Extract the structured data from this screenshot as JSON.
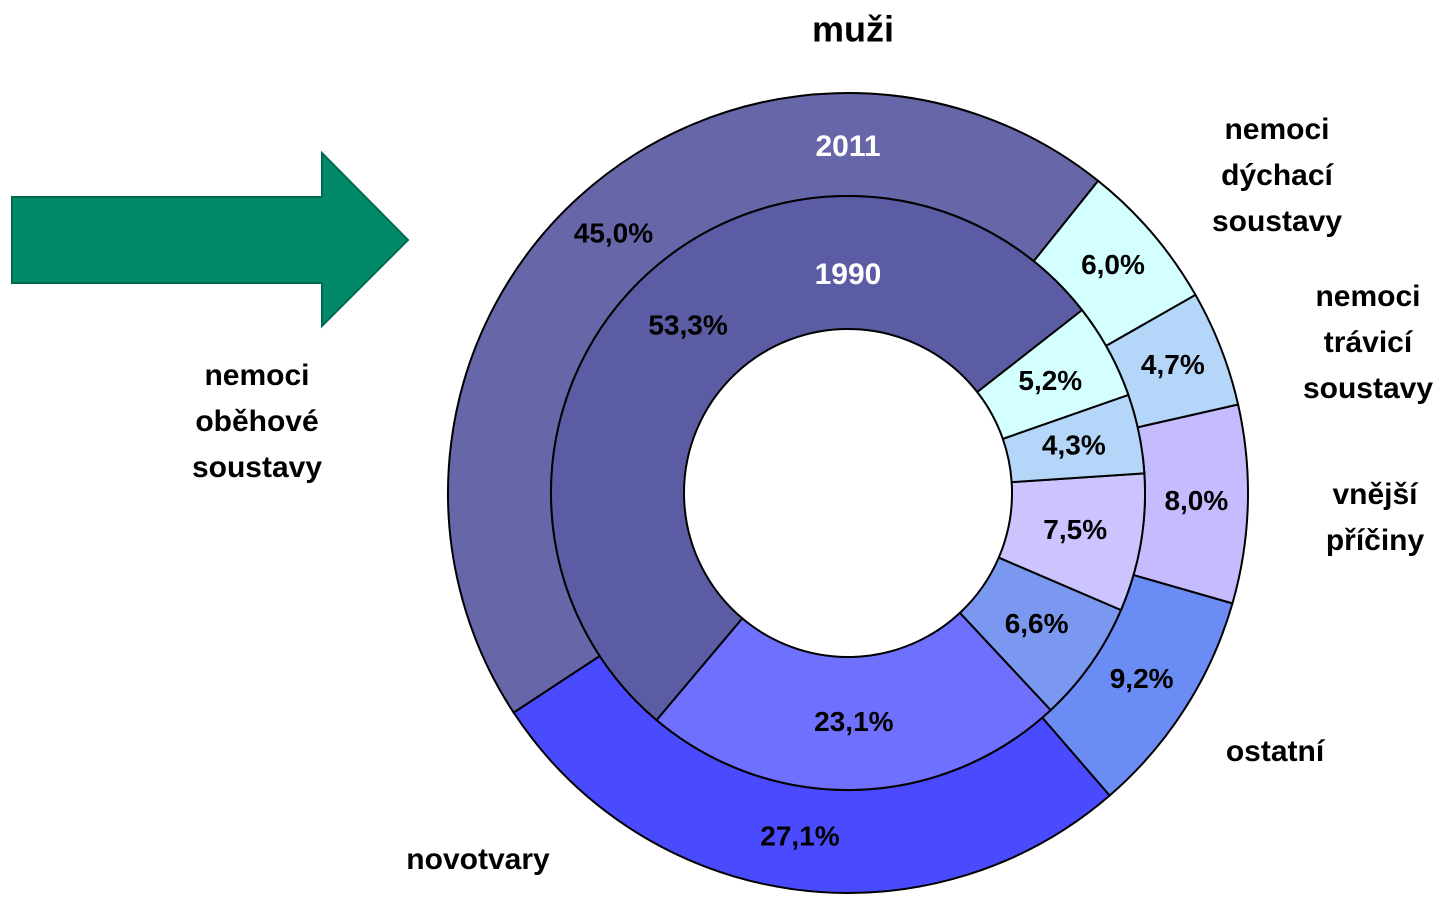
{
  "chart_data": {
    "type": "donut",
    "title": "muži",
    "categories": [
      "nemoci\noběhové\nsoustavy",
      "novotvary",
      "ostatní",
      "vnější\npříčiny",
      "nemoci\ntrávicí\nsoustavy",
      "nemoci\ndýchací\nsoustavy"
    ],
    "series": [
      {
        "name": "2011",
        "values": [
          45.0,
          27.1,
          9.2,
          8.0,
          4.7,
          6.0
        ],
        "value_labels": [
          "45,0%",
          "27,1%",
          "9,2%",
          "8,0%",
          "4,7%",
          "6,0%"
        ],
        "colors": [
          "#6666a8",
          "#4a4aff",
          "#6a8cf4",
          "#c4bcff",
          "#b4d6f8",
          "#d4ffff"
        ]
      },
      {
        "name": "1990",
        "values": [
          53.3,
          23.1,
          6.6,
          7.5,
          4.3,
          5.2
        ],
        "value_labels": [
          "53,3%",
          "23,1%",
          "6,6%",
          "7,5%",
          "4,3%",
          "5,2%"
        ],
        "colors": [
          "#5c5ca4",
          "#7070ff",
          "#7a98f0",
          "#ccc4ff",
          "#b4d6f8",
          "#d4ffff"
        ]
      }
    ]
  }
}
